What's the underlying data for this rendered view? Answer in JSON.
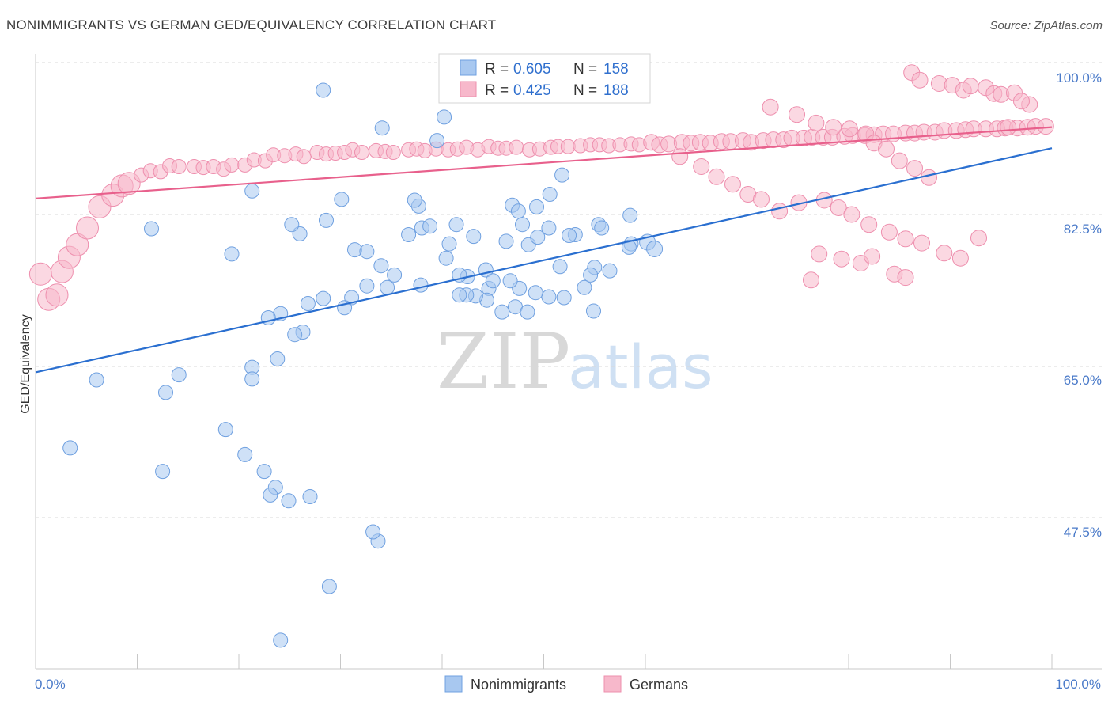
{
  "header": {
    "title": "NONIMMIGRANTS VS GERMAN GED/EQUIVALENCY CORRELATION CHART",
    "source": "Source: ZipAtlas.com"
  },
  "watermark": {
    "zip": "ZIP",
    "atlas": "atlas"
  },
  "legend_top": {
    "rows": [
      {
        "r_label": "R = ",
        "r_value": "0.605",
        "n_label": "N = ",
        "n_value": "158"
      },
      {
        "r_label": "R = ",
        "r_value": "0.425",
        "n_label": "N = ",
        "n_value": "188"
      }
    ]
  },
  "legend_bottom": {
    "items": [
      "Nonimmigrants",
      "Germans"
    ]
  },
  "colors": {
    "blue_fill": "#a8c8f0",
    "blue_stroke": "#6fa0e0",
    "blue_line": "#2a6fd0",
    "pink_fill": "#f7b8cb",
    "pink_stroke": "#ee8fae",
    "pink_line": "#e8608c",
    "tick_label": "#4a7ac9",
    "grid": "#d9d9d9"
  },
  "chart_data": {
    "type": "scatter",
    "title": "NONIMMIGRANTS VS GERMAN GED/EQUIVALENCY CORRELATION CHART",
    "xlabel": "",
    "ylabel": "GED/Equivalency",
    "xlim": [
      0,
      100
    ],
    "ylim": [
      32,
      103
    ],
    "x_tick_labels": [
      "0.0%",
      "100.0%"
    ],
    "y_ticks": [
      47.5,
      65.0,
      82.5,
      100.0
    ],
    "y_tick_labels": [
      "47.5%",
      "65.0%",
      "82.5%",
      "100.0%"
    ],
    "grid": "horizontal dashed",
    "legend_placement": "top-center",
    "series": [
      {
        "name": "Nonimmigrants",
        "R": 0.605,
        "N": 158,
        "trend": [
          [
            0,
            64.8
          ],
          [
            100,
            91.5
          ]
        ],
        "points": [
          [
            28.3,
            98.4
          ],
          [
            34.1,
            93.9
          ],
          [
            40.2,
            95.2
          ],
          [
            39.5,
            92.4
          ],
          [
            21.3,
            86.4
          ],
          [
            11.4,
            81.9
          ],
          [
            19.3,
            78.9
          ],
          [
            26.0,
            81.3
          ],
          [
            28.6,
            82.9
          ],
          [
            30.1,
            85.4
          ],
          [
            25.2,
            82.4
          ],
          [
            31.4,
            79.4
          ],
          [
            32.6,
            79.2
          ],
          [
            34.0,
            77.5
          ],
          [
            35.3,
            76.4
          ],
          [
            38.0,
            82.0
          ],
          [
            36.7,
            81.2
          ],
          [
            40.4,
            78.4
          ],
          [
            40.7,
            80.1
          ],
          [
            41.4,
            82.4
          ],
          [
            37.7,
            84.6
          ],
          [
            37.3,
            85.3
          ],
          [
            38.8,
            82.2
          ],
          [
            43.1,
            81.0
          ],
          [
            42.5,
            76.2
          ],
          [
            41.7,
            76.4
          ],
          [
            44.3,
            77.0
          ],
          [
            44.6,
            74.8
          ],
          [
            45.0,
            75.7
          ],
          [
            46.3,
            80.4
          ],
          [
            46.9,
            84.7
          ],
          [
            47.9,
            82.4
          ],
          [
            48.5,
            80.0
          ],
          [
            49.3,
            84.5
          ],
          [
            51.8,
            88.3
          ],
          [
            50.6,
            86.0
          ],
          [
            47.5,
            84.0
          ],
          [
            49.4,
            80.9
          ],
          [
            50.5,
            82.0
          ],
          [
            51.6,
            77.4
          ],
          [
            53.1,
            81.2
          ],
          [
            52.5,
            81.1
          ],
          [
            55.4,
            82.4
          ],
          [
            55.7,
            82.0
          ],
          [
            58.5,
            83.5
          ],
          [
            58.6,
            80.1
          ],
          [
            60.2,
            80.3
          ],
          [
            60.9,
            79.5
          ],
          [
            58.4,
            79.7
          ],
          [
            56.5,
            76.9
          ],
          [
            55.0,
            77.3
          ],
          [
            54.6,
            76.4
          ],
          [
            52.0,
            73.7
          ],
          [
            54.9,
            72.1
          ],
          [
            54.0,
            74.9
          ],
          [
            50.5,
            73.8
          ],
          [
            49.2,
            74.3
          ],
          [
            47.6,
            74.8
          ],
          [
            46.7,
            75.7
          ],
          [
            44.4,
            73.4
          ],
          [
            43.3,
            73.9
          ],
          [
            42.4,
            74.0
          ],
          [
            41.7,
            74.0
          ],
          [
            47.2,
            72.6
          ],
          [
            45.9,
            72.0
          ],
          [
            48.4,
            72.0
          ],
          [
            37.9,
            75.2
          ],
          [
            34.6,
            74.9
          ],
          [
            32.6,
            75.1
          ],
          [
            31.1,
            73.7
          ],
          [
            30.4,
            72.5
          ],
          [
            28.3,
            73.6
          ],
          [
            26.8,
            73.0
          ],
          [
            24.1,
            71.8
          ],
          [
            22.9,
            71.3
          ],
          [
            26.3,
            69.6
          ],
          [
            25.5,
            69.3
          ],
          [
            23.8,
            66.4
          ],
          [
            21.3,
            65.4
          ],
          [
            14.1,
            64.5
          ],
          [
            12.8,
            62.4
          ],
          [
            6.0,
            63.9
          ],
          [
            21.3,
            64.0
          ],
          [
            18.7,
            58.0
          ],
          [
            20.6,
            55.0
          ],
          [
            22.5,
            53.0
          ],
          [
            23.6,
            51.1
          ],
          [
            27.0,
            50.0
          ],
          [
            33.7,
            44.7
          ],
          [
            28.9,
            39.3
          ],
          [
            24.1,
            32.9
          ],
          [
            3.4,
            55.8
          ],
          [
            12.5,
            53.0
          ],
          [
            23.1,
            50.2
          ],
          [
            24.9,
            49.5
          ],
          [
            33.2,
            45.8
          ]
        ]
      },
      {
        "name": "Germans",
        "R": 0.425,
        "N": 188,
        "trend": [
          [
            0,
            85.5
          ],
          [
            100,
            94.0
          ]
        ],
        "points": [
          [
            0.5,
            76.5
          ],
          [
            1.3,
            73.5
          ],
          [
            2.1,
            74.0
          ],
          [
            2.6,
            76.8
          ],
          [
            3.3,
            78.5
          ],
          [
            4.1,
            80.0
          ],
          [
            5.1,
            82.0
          ],
          [
            6.3,
            84.5
          ],
          [
            7.6,
            85.9
          ],
          [
            8.5,
            87.0
          ],
          [
            9.2,
            87.3
          ],
          [
            10.4,
            88.3
          ],
          [
            11.3,
            88.8
          ],
          [
            12.3,
            88.7
          ],
          [
            13.2,
            89.4
          ],
          [
            14.1,
            89.3
          ],
          [
            15.6,
            89.3
          ],
          [
            16.5,
            89.2
          ],
          [
            17.5,
            89.3
          ],
          [
            18.5,
            89.0
          ],
          [
            19.3,
            89.5
          ],
          [
            20.6,
            89.5
          ],
          [
            21.5,
            90.1
          ],
          [
            22.6,
            90.0
          ],
          [
            23.4,
            90.7
          ],
          [
            24.5,
            90.6
          ],
          [
            25.6,
            90.8
          ],
          [
            26.4,
            90.5
          ],
          [
            27.7,
            91.0
          ],
          [
            28.6,
            90.8
          ],
          [
            29.5,
            90.9
          ],
          [
            30.4,
            91.0
          ],
          [
            31.2,
            91.3
          ],
          [
            32.1,
            91.0
          ],
          [
            33.5,
            91.2
          ],
          [
            34.4,
            91.1
          ],
          [
            35.2,
            91.0
          ],
          [
            36.7,
            91.3
          ],
          [
            37.5,
            91.4
          ],
          [
            38.3,
            91.2
          ],
          [
            39.4,
            91.4
          ],
          [
            40.6,
            91.3
          ],
          [
            41.5,
            91.4
          ],
          [
            42.4,
            91.6
          ],
          [
            43.5,
            91.3
          ],
          [
            44.6,
            91.7
          ],
          [
            45.5,
            91.5
          ],
          [
            46.3,
            91.5
          ],
          [
            47.3,
            91.6
          ],
          [
            48.6,
            91.3
          ],
          [
            49.6,
            91.4
          ],
          [
            50.7,
            91.6
          ],
          [
            51.4,
            91.7
          ],
          [
            52.4,
            91.7
          ],
          [
            53.6,
            91.8
          ],
          [
            54.6,
            91.9
          ],
          [
            55.5,
            91.9
          ],
          [
            56.4,
            91.8
          ],
          [
            57.5,
            91.9
          ],
          [
            58.6,
            92.0
          ],
          [
            59.4,
            91.9
          ],
          [
            60.6,
            92.2
          ],
          [
            61.4,
            91.9
          ],
          [
            62.3,
            92.0
          ],
          [
            63.6,
            92.2
          ],
          [
            64.5,
            92.1
          ],
          [
            65.4,
            92.2
          ],
          [
            66.4,
            92.1
          ],
          [
            67.5,
            92.3
          ],
          [
            68.4,
            92.3
          ],
          [
            69.6,
            92.4
          ],
          [
            70.4,
            92.2
          ],
          [
            71.6,
            92.4
          ],
          [
            72.6,
            92.5
          ],
          [
            73.6,
            92.5
          ],
          [
            74.4,
            92.7
          ],
          [
            75.6,
            92.7
          ],
          [
            76.4,
            92.8
          ],
          [
            77.5,
            92.8
          ],
          [
            78.4,
            92.8
          ],
          [
            79.6,
            92.9
          ],
          [
            80.4,
            93.0
          ],
          [
            81.6,
            93.0
          ],
          [
            82.5,
            93.1
          ],
          [
            83.4,
            93.2
          ],
          [
            84.4,
            93.2
          ],
          [
            85.6,
            93.3
          ],
          [
            86.5,
            93.3
          ],
          [
            87.4,
            93.4
          ],
          [
            88.5,
            93.4
          ],
          [
            89.4,
            93.6
          ],
          [
            90.6,
            93.6
          ],
          [
            91.5,
            93.7
          ],
          [
            92.3,
            93.8
          ],
          [
            93.5,
            93.8
          ],
          [
            94.6,
            93.8
          ],
          [
            95.4,
            93.9
          ],
          [
            96.6,
            93.9
          ],
          [
            97.6,
            94.0
          ],
          [
            98.4,
            94.1
          ],
          [
            99.4,
            94.1
          ],
          [
            86.2,
            100.5
          ],
          [
            87.0,
            99.6
          ],
          [
            88.9,
            99.2
          ],
          [
            90.2,
            99.0
          ],
          [
            91.3,
            98.4
          ],
          [
            92.0,
            98.9
          ],
          [
            93.5,
            98.7
          ],
          [
            94.3,
            98.0
          ],
          [
            95.0,
            97.9
          ],
          [
            96.3,
            98.1
          ],
          [
            97.8,
            96.7
          ],
          [
            97.0,
            97.1
          ],
          [
            95.7,
            94.0
          ],
          [
            72.3,
            96.4
          ],
          [
            74.9,
            95.5
          ],
          [
            76.8,
            94.5
          ],
          [
            78.5,
            94.0
          ],
          [
            80.1,
            93.8
          ],
          [
            81.7,
            93.2
          ],
          [
            82.5,
            92.1
          ],
          [
            83.7,
            91.4
          ],
          [
            85.0,
            90.0
          ],
          [
            86.5,
            89.1
          ],
          [
            87.9,
            88.0
          ],
          [
            63.4,
            90.5
          ],
          [
            65.5,
            89.3
          ],
          [
            67.0,
            88.1
          ],
          [
            68.6,
            87.2
          ],
          [
            70.1,
            86.0
          ],
          [
            71.4,
            85.4
          ],
          [
            73.2,
            84.0
          ],
          [
            75.1,
            85.0
          ],
          [
            77.6,
            85.3
          ],
          [
            79.0,
            84.4
          ],
          [
            80.3,
            83.6
          ],
          [
            82.0,
            82.4
          ],
          [
            84.0,
            81.5
          ],
          [
            85.6,
            80.7
          ],
          [
            87.2,
            80.2
          ],
          [
            89.4,
            79.0
          ],
          [
            91.0,
            78.4
          ],
          [
            92.8,
            80.8
          ],
          [
            77.1,
            78.9
          ],
          [
            79.3,
            78.3
          ],
          [
            81.2,
            77.8
          ],
          [
            84.5,
            76.5
          ],
          [
            85.6,
            76.1
          ],
          [
            76.3,
            75.8
          ],
          [
            82.3,
            78.6
          ]
        ]
      }
    ]
  }
}
